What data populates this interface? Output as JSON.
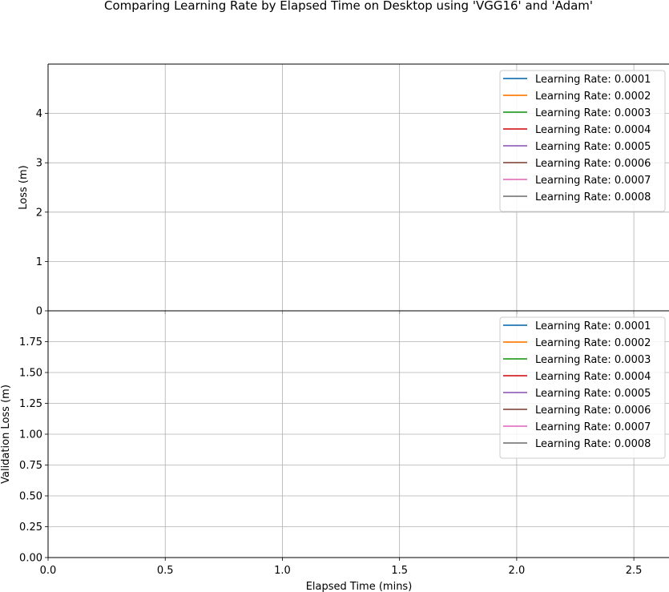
{
  "figure": {
    "title": "Comparing Learning Rate by Elapsed Time on Desktop using 'VGG16' and 'Adam'",
    "xlabel": "Elapsed Time (mins)"
  },
  "chart_data": [
    {
      "type": "line",
      "title": "",
      "xlabel": "",
      "ylabel": "Loss (m)",
      "xlim": [
        0,
        2.65
      ],
      "ylim": [
        0,
        5
      ],
      "xticks": [
        0.0,
        0.5,
        1.0,
        1.5,
        2.0,
        2.5
      ],
      "yticks": [
        0,
        1,
        2,
        3,
        4
      ],
      "ytick_labels": [
        "0",
        "1",
        "2",
        "3",
        "4"
      ],
      "grid": true,
      "legend_position": "top-right",
      "series": [
        {
          "name": "Learning Rate: 0.0001",
          "color": "#1f77b4",
          "x": [],
          "y": []
        },
        {
          "name": "Learning Rate: 0.0002",
          "color": "#ff7f0e",
          "x": [],
          "y": []
        },
        {
          "name": "Learning Rate: 0.0003",
          "color": "#2ca02c",
          "x": [],
          "y": []
        },
        {
          "name": "Learning Rate: 0.0004",
          "color": "#d62728",
          "x": [],
          "y": []
        },
        {
          "name": "Learning Rate: 0.0005",
          "color": "#9467bd",
          "x": [],
          "y": []
        },
        {
          "name": "Learning Rate: 0.0006",
          "color": "#8c564b",
          "x": [],
          "y": []
        },
        {
          "name": "Learning Rate: 0.0007",
          "color": "#e377c2",
          "x": [],
          "y": []
        },
        {
          "name": "Learning Rate: 0.0008",
          "color": "#7f7f7f",
          "x": [],
          "y": []
        }
      ]
    },
    {
      "type": "line",
      "title": "",
      "xlabel": "Elapsed Time (mins)",
      "ylabel": "Validation Loss (m)",
      "xlim": [
        0,
        2.65
      ],
      "ylim": [
        0,
        2
      ],
      "xticks": [
        0.0,
        0.5,
        1.0,
        1.5,
        2.0,
        2.5
      ],
      "xtick_labels": [
        "0.0",
        "0.5",
        "1.0",
        "1.5",
        "2.0",
        "2.5"
      ],
      "yticks": [
        0,
        0.25,
        0.5,
        0.75,
        1.0,
        1.25,
        1.5,
        1.75
      ],
      "ytick_labels": [
        "0.00",
        "0.25",
        "0.50",
        "0.75",
        "1.00",
        "1.25",
        "1.50",
        "1.75"
      ],
      "grid": true,
      "legend_position": "top-right",
      "series": [
        {
          "name": "Learning Rate: 0.0001",
          "color": "#1f77b4",
          "x": [],
          "y": []
        },
        {
          "name": "Learning Rate: 0.0002",
          "color": "#ff7f0e",
          "x": [],
          "y": []
        },
        {
          "name": "Learning Rate: 0.0003",
          "color": "#2ca02c",
          "x": [],
          "y": []
        },
        {
          "name": "Learning Rate: 0.0004",
          "color": "#d62728",
          "x": [],
          "y": []
        },
        {
          "name": "Learning Rate: 0.0005",
          "color": "#9467bd",
          "x": [],
          "y": []
        },
        {
          "name": "Learning Rate: 0.0006",
          "color": "#8c564b",
          "x": [],
          "y": []
        },
        {
          "name": "Learning Rate: 0.0007",
          "color": "#e377c2",
          "x": [],
          "y": []
        },
        {
          "name": "Learning Rate: 0.0008",
          "color": "#7f7f7f",
          "x": [],
          "y": []
        }
      ]
    }
  ]
}
